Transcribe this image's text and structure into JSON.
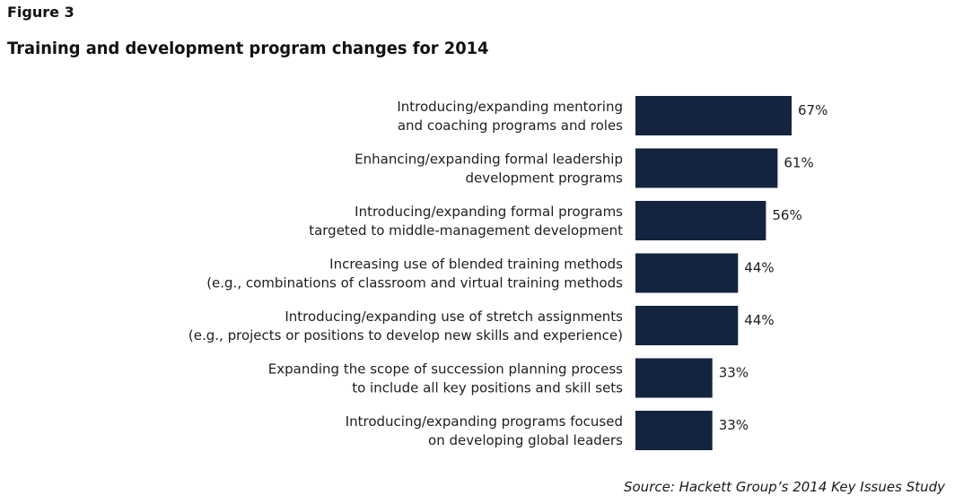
{
  "figure_label": "Figure 3",
  "chart_data": {
    "type": "bar",
    "orientation": "horizontal",
    "title": "Training and development program changes for 2014",
    "categories": [
      [
        "Introducing/expanding mentoring",
        "and coaching programs and roles"
      ],
      [
        "Enhancing/expanding formal leadership",
        "development programs"
      ],
      [
        "Introducing/expanding formal programs",
        "targeted to middle-management development"
      ],
      [
        "Increasing use of blended training methods",
        "(e.g., combinations of classroom and virtual training methods"
      ],
      [
        "Introducing/expanding use of stretch assignments",
        "(e.g., projects or positions to develop new skills and experience)"
      ],
      [
        "Expanding the scope of succession planning process",
        "to include all key positions and skill sets"
      ],
      [
        "Introducing/expanding programs focused",
        "on developing global leaders"
      ]
    ],
    "values": [
      67,
      61,
      56,
      44,
      44,
      33,
      33
    ],
    "value_labels": [
      "67%",
      "61%",
      "56%",
      "44%",
      "44%",
      "33%",
      "33%"
    ],
    "units": "%",
    "bar_color": "#14243f",
    "grid": false,
    "legend": "none",
    "xlim": [
      0,
      100
    ]
  },
  "source": {
    "prefix": "Source: Hackett Group’s",
    "emphasis": "2014 Key Issues Study"
  }
}
